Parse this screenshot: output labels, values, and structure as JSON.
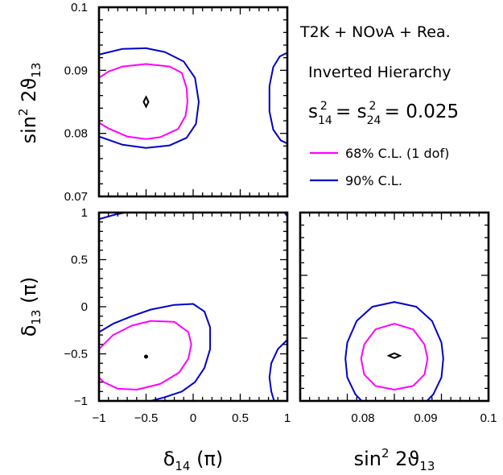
{
  "annotations": {
    "line1": "T2K + NOνA + Rea.",
    "line2": "Inverted Hierarchy",
    "line3": "s",
    "line3_sub1": "14",
    "line3_sup1": "2",
    "line3_mid": " = s",
    "line3_sub2": "24",
    "line3_sup2": "2",
    "line3_tail": " = 0.025"
  },
  "legend": [
    {
      "label": "68% C.L. (1 dof)",
      "color": "#ff00ff"
    },
    {
      "label": "90% C.L.",
      "color": "#0000cc"
    }
  ],
  "axis_labels": {
    "sin_main": "sin",
    "sin_sup": "2",
    "sin_mid": " 2ϑ",
    "sin_sub": "13",
    "d13_main": "δ",
    "d13_sub": "13",
    "d13_tail": " (π)",
    "d14_main": "δ",
    "d14_sub": "14",
    "d14_tail": " (π)"
  },
  "chart_data": [
    {
      "type": "line",
      "panel": "top-left",
      "xlabel": "",
      "ylabel": "sin² 2ϑ13",
      "xlim": [
        -1,
        1
      ],
      "ylim": [
        0.07,
        0.1
      ],
      "xticks": [],
      "yticks": [
        "0.07",
        "0.08",
        "0.09",
        "0.1"
      ],
      "best_fit": {
        "x": -0.5,
        "y": 0.085
      },
      "series": [
        {
          "name": "68% C.L. (1 dof)",
          "color": "#ff00ff",
          "segments": [
            [
              [
                -1,
                0.0888
              ],
              [
                -0.9,
                0.0898
              ],
              [
                -0.75,
                0.0906
              ],
              [
                -0.5,
                0.091
              ],
              [
                -0.25,
                0.0906
              ],
              [
                -0.12,
                0.0896
              ],
              [
                -0.07,
                0.0872
              ],
              [
                -0.06,
                0.085
              ],
              [
                -0.08,
                0.0828
              ],
              [
                -0.16,
                0.0807
              ],
              [
                -0.35,
                0.0794
              ],
              [
                -0.5,
                0.0791
              ],
              [
                -0.7,
                0.0795
              ],
              [
                -0.9,
                0.0808
              ],
              [
                -1,
                0.0817
              ]
            ]
          ]
        },
        {
          "name": "90% C.L.",
          "color": "#0000cc",
          "segments": [
            [
              [
                -1,
                0.0925
              ],
              [
                -0.75,
                0.0934
              ],
              [
                -0.5,
                0.0935
              ],
              [
                -0.3,
                0.0929
              ],
              [
                -0.1,
                0.0914
              ],
              [
                0.02,
                0.0888
              ],
              [
                0.06,
                0.085
              ],
              [
                0.03,
                0.0815
              ],
              [
                -0.07,
                0.0793
              ],
              [
                -0.25,
                0.0781
              ],
              [
                -0.5,
                0.0777
              ],
              [
                -0.75,
                0.0782
              ],
              [
                -1,
                0.0795
              ]
            ],
            [
              [
                1,
                0.0928
              ],
              [
                0.92,
                0.0922
              ],
              [
                0.85,
                0.0905
              ],
              [
                0.81,
                0.0875
              ],
              [
                0.81,
                0.0835
              ],
              [
                0.85,
                0.0806
              ],
              [
                0.93,
                0.0789
              ],
              [
                1,
                0.0784
              ]
            ]
          ]
        }
      ]
    },
    {
      "type": "line",
      "panel": "bottom-left",
      "xlabel": "δ14 (π)",
      "ylabel": "δ13 (π)",
      "xlim": [
        -1,
        1
      ],
      "ylim": [
        -1,
        1
      ],
      "xticks": [
        "−1",
        "−0.5",
        "0",
        "0.5",
        "1"
      ],
      "yticks": [
        "−1",
        "−0.5",
        "0",
        "0.5",
        "1"
      ],
      "best_fit": {
        "x": -0.5,
        "y": -0.53
      },
      "series": [
        {
          "name": "68% C.L. (1 dof)",
          "color": "#ff00ff",
          "segments": [
            [
              [
                -1,
                -0.45
              ],
              [
                -0.85,
                -0.3
              ],
              [
                -0.65,
                -0.2
              ],
              [
                -0.45,
                -0.15
              ],
              [
                -0.2,
                -0.16
              ],
              [
                -0.05,
                -0.27
              ],
              [
                -0.02,
                -0.4
              ],
              [
                -0.05,
                -0.55
              ],
              [
                -0.15,
                -0.7
              ],
              [
                -0.35,
                -0.82
              ],
              [
                -0.6,
                -0.88
              ],
              [
                -0.8,
                -0.87
              ],
              [
                -0.95,
                -0.8
              ],
              [
                -1,
                -0.75
              ]
            ]
          ]
        },
        {
          "name": "90% C.L.",
          "color": "#0000cc",
          "segments": [
            [
              [
                -1,
                -0.27
              ],
              [
                -0.85,
                -0.18
              ],
              [
                -0.65,
                -0.1
              ],
              [
                -0.45,
                -0.03
              ],
              [
                -0.2,
                0.02
              ],
              [
                0,
                0.03
              ],
              [
                0.12,
                -0.05
              ],
              [
                0.18,
                -0.22
              ],
              [
                0.18,
                -0.45
              ],
              [
                0.12,
                -0.65
              ],
              [
                0.02,
                -0.8
              ],
              [
                -0.12,
                -0.9
              ],
              [
                -0.3,
                -0.96
              ],
              [
                -0.45,
                -1
              ]
            ],
            [
              [
                1,
                -0.35
              ],
              [
                0.9,
                -0.45
              ],
              [
                0.83,
                -0.6
              ],
              [
                0.81,
                -0.75
              ],
              [
                0.83,
                -0.9
              ],
              [
                0.86,
                -1
              ]
            ],
            [
              [
                -1,
                0.93
              ],
              [
                -0.82,
                0.98
              ],
              [
                -0.72,
                1
              ]
            ],
            [
              [
                0.97,
                1
              ],
              [
                1,
                0.96
              ]
            ]
          ]
        }
      ]
    },
    {
      "type": "line",
      "panel": "bottom-right",
      "xlabel": "sin² 2ϑ13",
      "ylabel": "",
      "xlim": [
        0.07,
        0.1
      ],
      "ylim": [
        -1,
        1
      ],
      "xticks": [
        "0.08",
        "0.09",
        "0.1"
      ],
      "yticks": [],
      "best_fit": {
        "x": 0.085,
        "y": -0.52
      },
      "series": [
        {
          "name": "68% C.L. (1 dof)",
          "color": "#ff00ff",
          "segments": [
            [
              [
                0.085,
                -0.18
              ],
              [
                0.088,
                -0.24
              ],
              [
                0.0898,
                -0.4
              ],
              [
                0.0903,
                -0.55
              ],
              [
                0.0898,
                -0.72
              ],
              [
                0.088,
                -0.84
              ],
              [
                0.085,
                -0.88
              ],
              [
                0.082,
                -0.84
              ],
              [
                0.0802,
                -0.72
              ],
              [
                0.0797,
                -0.55
              ],
              [
                0.0802,
                -0.4
              ],
              [
                0.082,
                -0.24
              ],
              [
                0.085,
                -0.18
              ]
            ]
          ]
        },
        {
          "name": "90% C.L.",
          "color": "#0000cc",
          "segments": [
            [
              [
                0.085,
                0.05
              ],
              [
                0.0885,
                0.0
              ],
              [
                0.091,
                -0.15
              ],
              [
                0.0925,
                -0.38
              ],
              [
                0.0928,
                -0.55
              ],
              [
                0.0925,
                -0.75
              ],
              [
                0.0912,
                -0.93
              ],
              [
                0.0902,
                -1
              ]
            ],
            [
              [
                0.0798,
                -1
              ],
              [
                0.0788,
                -0.93
              ],
              [
                0.0775,
                -0.75
              ],
              [
                0.0772,
                -0.55
              ],
              [
                0.0775,
                -0.38
              ],
              [
                0.079,
                -0.15
              ],
              [
                0.0815,
                0.0
              ],
              [
                0.085,
                0.05
              ]
            ]
          ]
        }
      ]
    }
  ]
}
